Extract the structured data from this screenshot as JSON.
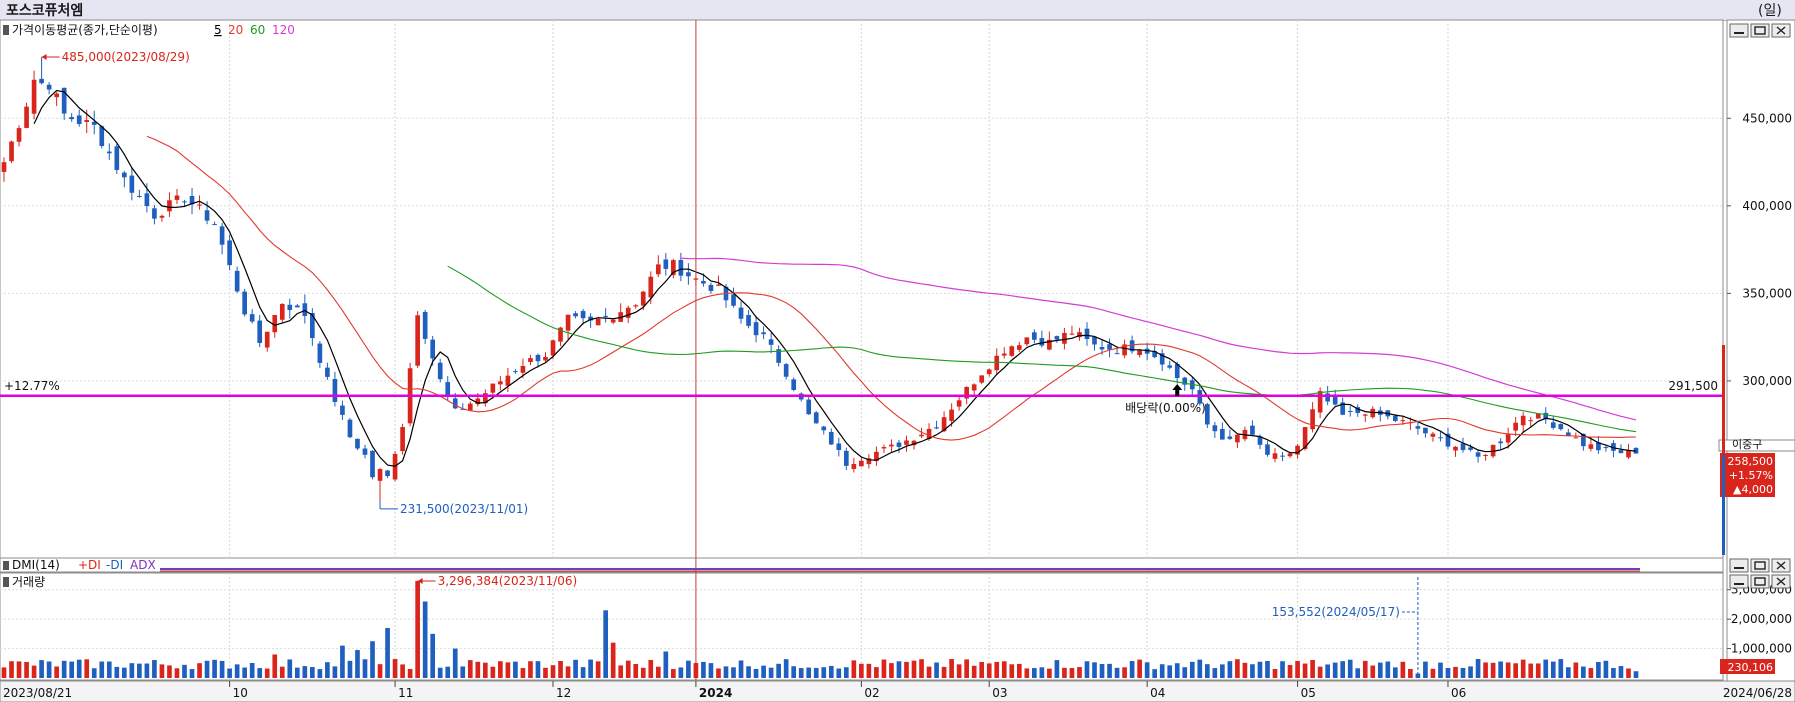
{
  "window": {
    "title": "포스코퓨처엠",
    "period_label": "(일)"
  },
  "colors": {
    "rise": "#d9251c",
    "fall": "#1e5fbf",
    "ma5": "#000000",
    "ma20": "#e03a2e",
    "ma60": "#1f9c1f",
    "ma120": "#d63bd6",
    "marker_line": "#e000e0"
  },
  "legend": {
    "label": "가격이동평균(종가,단순이평)",
    "ma5": "5",
    "ma20": "20",
    "ma60": "60",
    "ma120": "120"
  },
  "annotations": {
    "high_label": "485,000(2023/08/29)",
    "low_label": "231,500(2023/11/01)",
    "dividend_label": "배당락(0.00%)",
    "horizontal_pct": "+12.77%",
    "horizontal_value": "291,500",
    "right_tag": "이중구",
    "current_price": "258,500",
    "current_pct": "+1.57%",
    "current_change": "▲4,000",
    "vol_high_label": "3,296,384(2023/11/06)",
    "vol_mark_label": "153,552(2024/05/17)",
    "vol_current": "230,106"
  },
  "dmi_panel": {
    "label": "DMI(14)",
    "plus_di": "+DI",
    "minus_di": "-DI",
    "adx": "ADX"
  },
  "volume_panel": {
    "label": "거래량"
  },
  "icons": [
    "window-minimize-icon",
    "window-maximize-icon",
    "window-close-icon",
    "arrow-up-icon"
  ],
  "chart_data": {
    "type": "candlestick",
    "title": "포스코퓨처엠",
    "price_ylim": [
      200000,
      505000
    ],
    "price_ticks": [
      "450,000",
      "400,000",
      "350,000",
      "300,000"
    ],
    "volume_ylim": [
      0,
      3500000
    ],
    "volume_ticks": [
      "3,000,000",
      "2,000,000",
      "1,000,000"
    ],
    "x_labels": [
      "2023/08/21",
      "10",
      "11",
      "12",
      "2024",
      "02",
      "03",
      "04",
      "05",
      "06",
      "2024/06/28"
    ],
    "series": [
      {
        "name": "5",
        "key": "ma5"
      },
      {
        "name": "20",
        "key": "ma20"
      },
      {
        "name": "60",
        "key": "ma60"
      },
      {
        "name": "120",
        "key": "ma120"
      }
    ],
    "ohlc_anchors": {
      "format": "[trading_index, close]",
      "points": [
        [
          0,
          425000
        ],
        [
          4,
          470000
        ],
        [
          6,
          470000
        ],
        [
          8,
          452000
        ],
        [
          12,
          445000
        ],
        [
          16,
          415000
        ],
        [
          20,
          395000
        ],
        [
          24,
          405000
        ],
        [
          28,
          390000
        ],
        [
          32,
          340000
        ],
        [
          34,
          322000
        ],
        [
          37,
          345000
        ],
        [
          40,
          338000
        ],
        [
          43,
          300000
        ],
        [
          46,
          268000
        ],
        [
          49,
          252000
        ],
        [
          51,
          245000
        ],
        [
          53,
          275000
        ],
        [
          55,
          340000
        ],
        [
          58,
          300000
        ],
        [
          60,
          282000
        ],
        [
          63,
          290000
        ],
        [
          66,
          300000
        ],
        [
          69,
          310000
        ],
        [
          72,
          315000
        ],
        [
          75,
          335000
        ],
        [
          78,
          333000
        ],
        [
          81,
          338000
        ],
        [
          84,
          345000
        ],
        [
          87,
          365000
        ],
        [
          89,
          366000
        ],
        [
          92,
          358000
        ],
        [
          95,
          352000
        ],
        [
          98,
          335000
        ],
        [
          101,
          325000
        ],
        [
          104,
          305000
        ],
        [
          107,
          280000
        ],
        [
          110,
          265000
        ],
        [
          112,
          253000
        ],
        [
          115,
          258000
        ],
        [
          118,
          262000
        ],
        [
          121,
          268000
        ],
        [
          124,
          275000
        ],
        [
          127,
          290000
        ],
        [
          130,
          305000
        ],
        [
          133,
          318000
        ],
        [
          136,
          325000
        ],
        [
          139,
          322000
        ],
        [
          142,
          328000
        ],
        [
          145,
          320000
        ],
        [
          148,
          318000
        ],
        [
          151,
          320000
        ],
        [
          154,
          312000
        ],
        [
          156,
          302000
        ],
        [
          158,
          295000
        ],
        [
          160,
          275000
        ],
        [
          163,
          265000
        ],
        [
          165,
          272000
        ],
        [
          168,
          258000
        ],
        [
          170,
          255000
        ],
        [
          172,
          263000
        ],
        [
          175,
          292000
        ],
        [
          178,
          280000
        ],
        [
          181,
          283000
        ],
        [
          184,
          279000
        ],
        [
          187,
          275000
        ],
        [
          190,
          268000
        ],
        [
          193,
          263000
        ],
        [
          196,
          256000
        ],
        [
          199,
          266000
        ],
        [
          202,
          281000
        ],
        [
          205,
          278000
        ],
        [
          207,
          273000
        ],
        [
          210,
          264000
        ],
        [
          213,
          260000
        ],
        [
          217,
          258500
        ]
      ]
    },
    "trading_days": 218,
    "high": 485000,
    "low": 231500,
    "horizontal_line": 291500,
    "last_close": 258500,
    "volume_peak": 3296384
  }
}
